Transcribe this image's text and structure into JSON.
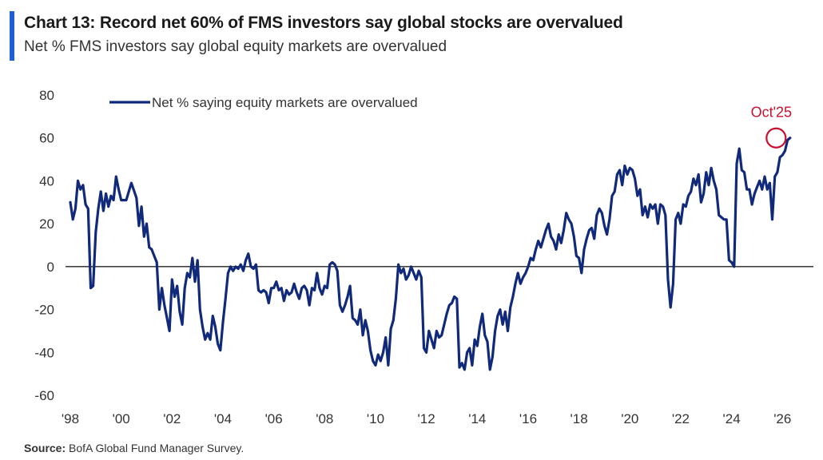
{
  "colors": {
    "accent": "#1f5fd6",
    "series": "#10297a",
    "annotation": "#c8102e",
    "zero_line": "#222222"
  },
  "chart_data": {
    "type": "line",
    "title": "Chart 13: Record net 60% of FMS investors say global stocks are overvalued",
    "subtitle": "Net % FMS investors say global equity markets are overvalued",
    "xlabel": "",
    "ylabel": "",
    "xlim": [
      1998,
      2026.4
    ],
    "ylim": [
      -60,
      80
    ],
    "yticks": [
      80,
      60,
      40,
      20,
      0,
      -20,
      -40,
      -60
    ],
    "ytick_labels": [
      "80",
      "60",
      "40",
      "20",
      "0",
      "-20",
      "-40",
      "-60"
    ],
    "xticks": [
      1998,
      2000,
      2002,
      2004,
      2006,
      2008,
      2010,
      2012,
      2014,
      2016,
      2018,
      2020,
      2022,
      2024,
      2026
    ],
    "xtick_labels": [
      "'98",
      "'00",
      "'02",
      "'04",
      "'06",
      "'08",
      "'10",
      "'12",
      "'14",
      "'16",
      "'18",
      "'20",
      "'22",
      "'24",
      "'26"
    ],
    "legend": {
      "label": "Net % saying equity markets are overvalued",
      "placement": "top-left"
    },
    "annotation": {
      "label": "Oct'25",
      "x": 2025.75,
      "y": 60
    },
    "series": [
      {
        "name": "Net % saying equity markets are overvalued",
        "points": [
          [
            1998.0,
            30
          ],
          [
            1998.1,
            22
          ],
          [
            1998.2,
            27
          ],
          [
            1998.3,
            40
          ],
          [
            1998.4,
            36
          ],
          [
            1998.5,
            38
          ],
          [
            1998.6,
            29
          ],
          [
            1998.7,
            27
          ],
          [
            1998.8,
            -10
          ],
          [
            1998.9,
            -9
          ],
          [
            1999.0,
            16
          ],
          [
            1999.1,
            27
          ],
          [
            1999.2,
            35
          ],
          [
            1999.3,
            26
          ],
          [
            1999.4,
            34
          ],
          [
            1999.5,
            28
          ],
          [
            1999.6,
            33
          ],
          [
            1999.7,
            31
          ],
          [
            1999.8,
            42
          ],
          [
            1999.9,
            36
          ],
          [
            2000.0,
            31
          ],
          [
            2000.2,
            31
          ],
          [
            2000.4,
            39
          ],
          [
            2000.6,
            32
          ],
          [
            2000.7,
            19
          ],
          [
            2000.8,
            28
          ],
          [
            2000.9,
            14
          ],
          [
            2001.0,
            20
          ],
          [
            2001.1,
            9
          ],
          [
            2001.2,
            8
          ],
          [
            2001.3,
            5
          ],
          [
            2001.4,
            2
          ],
          [
            2001.5,
            -20
          ],
          [
            2001.6,
            -10
          ],
          [
            2001.7,
            -18
          ],
          [
            2001.8,
            -24
          ],
          [
            2001.9,
            -30
          ],
          [
            2002.0,
            -6
          ],
          [
            2002.1,
            -14
          ],
          [
            2002.2,
            -9
          ],
          [
            2002.3,
            -21
          ],
          [
            2002.4,
            -27
          ],
          [
            2002.5,
            -10
          ],
          [
            2002.6,
            -3
          ],
          [
            2002.7,
            -5
          ],
          [
            2002.8,
            4
          ],
          [
            2002.9,
            -7
          ],
          [
            2003.0,
            3
          ],
          [
            2003.1,
            -20
          ],
          [
            2003.2,
            -28
          ],
          [
            2003.3,
            -34
          ],
          [
            2003.4,
            -31
          ],
          [
            2003.5,
            -34
          ],
          [
            2003.6,
            -23
          ],
          [
            2003.7,
            -28
          ],
          [
            2003.8,
            -36
          ],
          [
            2003.9,
            -39
          ],
          [
            2004.0,
            -26
          ],
          [
            2004.1,
            -15
          ],
          [
            2004.2,
            -3
          ],
          [
            2004.3,
            0
          ],
          [
            2004.4,
            -2
          ],
          [
            2004.5,
            0
          ],
          [
            2004.6,
            -1
          ],
          [
            2004.7,
            1
          ],
          [
            2004.8,
            -2
          ],
          [
            2004.9,
            3
          ],
          [
            2005.0,
            6
          ],
          [
            2005.1,
            0
          ],
          [
            2005.2,
            -1
          ],
          [
            2005.3,
            1
          ],
          [
            2005.4,
            -11
          ],
          [
            2005.5,
            -12
          ],
          [
            2005.6,
            -11
          ],
          [
            2005.7,
            -12
          ],
          [
            2005.8,
            -17
          ],
          [
            2005.9,
            -10
          ],
          [
            2006.0,
            -10
          ],
          [
            2006.1,
            -7
          ],
          [
            2006.2,
            -11
          ],
          [
            2006.3,
            -10
          ],
          [
            2006.4,
            -16
          ],
          [
            2006.5,
            -11
          ],
          [
            2006.6,
            -13
          ],
          [
            2006.7,
            -12
          ],
          [
            2006.8,
            -8
          ],
          [
            2006.9,
            -12
          ],
          [
            2007.0,
            -15
          ],
          [
            2007.1,
            -10
          ],
          [
            2007.2,
            -9
          ],
          [
            2007.3,
            -11
          ],
          [
            2007.4,
            -18
          ],
          [
            2007.5,
            -10
          ],
          [
            2007.6,
            -11
          ],
          [
            2007.7,
            -3
          ],
          [
            2007.8,
            -10
          ],
          [
            2007.9,
            -13
          ],
          [
            2008.0,
            -9
          ],
          [
            2008.1,
            -10
          ],
          [
            2008.2,
            1
          ],
          [
            2008.3,
            2
          ],
          [
            2008.4,
            1
          ],
          [
            2008.5,
            -2
          ],
          [
            2008.6,
            -18
          ],
          [
            2008.7,
            -21
          ],
          [
            2008.8,
            -18
          ],
          [
            2008.9,
            -14
          ],
          [
            2009.0,
            -9
          ],
          [
            2009.1,
            -24
          ],
          [
            2009.2,
            -25
          ],
          [
            2009.3,
            -27
          ],
          [
            2009.4,
            -20
          ],
          [
            2009.5,
            -32
          ],
          [
            2009.6,
            -25
          ],
          [
            2009.7,
            -30
          ],
          [
            2009.8,
            -39
          ],
          [
            2009.9,
            -44
          ],
          [
            2010.0,
            -46
          ],
          [
            2010.1,
            -41
          ],
          [
            2010.2,
            -44
          ],
          [
            2010.3,
            -40
          ],
          [
            2010.4,
            -33
          ],
          [
            2010.5,
            -46
          ],
          [
            2010.6,
            -29
          ],
          [
            2010.7,
            -25
          ],
          [
            2010.8,
            -15
          ],
          [
            2010.9,
            1
          ],
          [
            2011.0,
            -3
          ],
          [
            2011.1,
            -1
          ],
          [
            2011.2,
            -6
          ],
          [
            2011.3,
            -4
          ],
          [
            2011.4,
            0
          ],
          [
            2011.5,
            -3
          ],
          [
            2011.6,
            -6
          ],
          [
            2011.7,
            -2
          ],
          [
            2011.8,
            -5
          ],
          [
            2011.9,
            -38
          ],
          [
            2012.0,
            -40
          ],
          [
            2012.1,
            -30
          ],
          [
            2012.2,
            -34
          ],
          [
            2012.3,
            -38
          ],
          [
            2012.4,
            -30
          ],
          [
            2012.5,
            -33
          ],
          [
            2012.6,
            -32
          ],
          [
            2012.7,
            -27
          ],
          [
            2012.8,
            -22
          ],
          [
            2012.9,
            -18
          ],
          [
            2013.0,
            -17
          ],
          [
            2013.1,
            -14
          ],
          [
            2013.2,
            -15
          ],
          [
            2013.3,
            -47
          ],
          [
            2013.4,
            -45
          ],
          [
            2013.5,
            -48
          ],
          [
            2013.6,
            -40
          ],
          [
            2013.7,
            -38
          ],
          [
            2013.8,
            -46
          ],
          [
            2013.9,
            -34
          ],
          [
            2014.0,
            -37
          ],
          [
            2014.1,
            -28
          ],
          [
            2014.2,
            -22
          ],
          [
            2014.3,
            -32
          ],
          [
            2014.4,
            -35
          ],
          [
            2014.5,
            -48
          ],
          [
            2014.6,
            -42
          ],
          [
            2014.7,
            -30
          ],
          [
            2014.8,
            -23
          ],
          [
            2014.9,
            -20
          ],
          [
            2015.0,
            -27
          ],
          [
            2015.1,
            -21
          ],
          [
            2015.2,
            -30
          ],
          [
            2015.3,
            -19
          ],
          [
            2015.4,
            -14
          ],
          [
            2015.5,
            -8
          ],
          [
            2015.6,
            -3
          ],
          [
            2015.7,
            -8
          ],
          [
            2015.8,
            -5
          ],
          [
            2015.9,
            -3
          ],
          [
            2016.0,
            0
          ],
          [
            2016.1,
            4
          ],
          [
            2016.2,
            3
          ],
          [
            2016.3,
            8
          ],
          [
            2016.4,
            12
          ],
          [
            2016.5,
            9
          ],
          [
            2016.6,
            13
          ],
          [
            2016.7,
            17
          ],
          [
            2016.8,
            20
          ],
          [
            2016.9,
            14
          ],
          [
            2017.0,
            12
          ],
          [
            2017.1,
            8
          ],
          [
            2017.2,
            15
          ],
          [
            2017.3,
            11
          ],
          [
            2017.4,
            17
          ],
          [
            2017.5,
            25
          ],
          [
            2017.6,
            22
          ],
          [
            2017.7,
            20
          ],
          [
            2017.8,
            14
          ],
          [
            2017.9,
            5
          ],
          [
            2018.0,
            4
          ],
          [
            2018.1,
            -3
          ],
          [
            2018.2,
            8
          ],
          [
            2018.3,
            13
          ],
          [
            2018.4,
            17
          ],
          [
            2018.5,
            18
          ],
          [
            2018.6,
            13
          ],
          [
            2018.7,
            24
          ],
          [
            2018.8,
            27
          ],
          [
            2018.9,
            25
          ],
          [
            2019.0,
            19
          ],
          [
            2019.1,
            15
          ],
          [
            2019.2,
            22
          ],
          [
            2019.3,
            33
          ],
          [
            2019.4,
            35
          ],
          [
            2019.5,
            43
          ],
          [
            2019.6,
            45
          ],
          [
            2019.7,
            38
          ],
          [
            2019.8,
            47
          ],
          [
            2019.9,
            43
          ],
          [
            2020.0,
            46
          ],
          [
            2020.1,
            45
          ],
          [
            2020.2,
            41
          ],
          [
            2020.3,
            33
          ],
          [
            2020.4,
            36
          ],
          [
            2020.5,
            24
          ],
          [
            2020.6,
            28
          ],
          [
            2020.7,
            23
          ],
          [
            2020.8,
            29
          ],
          [
            2020.9,
            27
          ],
          [
            2021.0,
            29
          ],
          [
            2021.1,
            20
          ],
          [
            2021.2,
            29
          ],
          [
            2021.3,
            28
          ],
          [
            2021.4,
            24
          ],
          [
            2021.5,
            -6
          ],
          [
            2021.6,
            -19
          ],
          [
            2021.7,
            -8
          ],
          [
            2021.8,
            22
          ],
          [
            2021.9,
            25
          ],
          [
            2022.0,
            20
          ],
          [
            2022.1,
            29
          ],
          [
            2022.2,
            28
          ],
          [
            2022.3,
            33
          ],
          [
            2022.4,
            35
          ],
          [
            2022.5,
            41
          ],
          [
            2022.6,
            38
          ],
          [
            2022.7,
            43
          ],
          [
            2022.8,
            30
          ],
          [
            2022.9,
            34
          ],
          [
            2023.0,
            44
          ],
          [
            2023.1,
            38
          ],
          [
            2023.2,
            46
          ],
          [
            2023.3,
            40
          ],
          [
            2023.4,
            36
          ],
          [
            2023.5,
            24
          ],
          [
            2023.6,
            23
          ],
          [
            2023.7,
            22
          ],
          [
            2023.8,
            22
          ],
          [
            2023.9,
            3
          ],
          [
            2024.0,
            2
          ],
          [
            2024.1,
            0
          ],
          [
            2024.2,
            48
          ],
          [
            2024.3,
            55
          ],
          [
            2024.4,
            45
          ],
          [
            2024.5,
            44
          ],
          [
            2024.6,
            36
          ],
          [
            2024.7,
            36
          ],
          [
            2024.8,
            29
          ],
          [
            2024.9,
            34
          ],
          [
            2025.0,
            37
          ],
          [
            2025.1,
            40
          ],
          [
            2025.2,
            36
          ],
          [
            2025.3,
            42
          ],
          [
            2025.4,
            36
          ],
          [
            2025.5,
            39
          ],
          [
            2025.6,
            22
          ],
          [
            2025.7,
            42
          ],
          [
            2025.8,
            44
          ],
          [
            2025.9,
            51
          ],
          [
            2026.0,
            52
          ],
          [
            2026.1,
            54
          ],
          [
            2026.2,
            59
          ],
          [
            2026.3,
            60
          ]
        ]
      }
    ]
  },
  "source": {
    "label": "Source:",
    "text": "BofA Global Fund Manager Survey."
  }
}
